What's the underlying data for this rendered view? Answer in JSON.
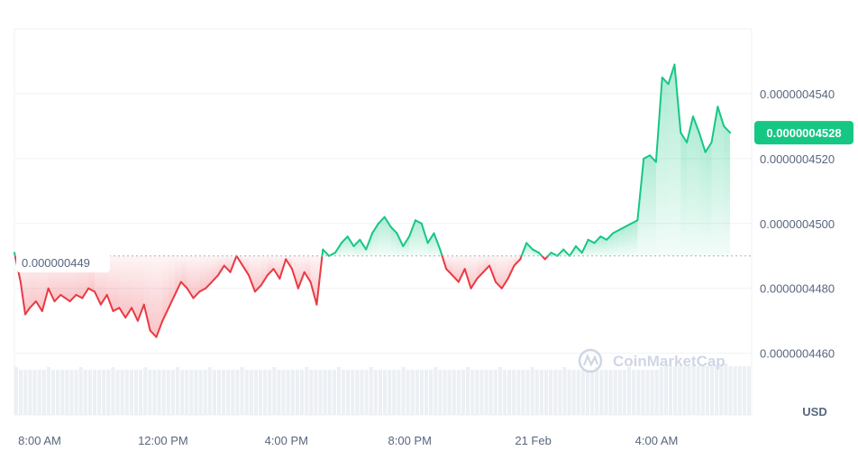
{
  "chart_data": {
    "type": "area",
    "currency": "USD",
    "watermark": "CoinMarketCap",
    "reference_price_label": "0.000000449",
    "reference_price": 4.49e-07,
    "current_price_label": "0.0000004528",
    "current_price": 4.528e-07,
    "ylim": [
      4.441e-07,
      4.56e-07
    ],
    "y_ticks": [
      {
        "label": "0.0000004540",
        "value": 4.54e-07
      },
      {
        "label": "0.0000004520",
        "value": 4.52e-07
      },
      {
        "label": "0.0000004500",
        "value": 4.5e-07
      },
      {
        "label": "0.0000004480",
        "value": 4.48e-07
      },
      {
        "label": "0.0000004460",
        "value": 4.46e-07
      }
    ],
    "x_ticks": [
      {
        "label": "8:00 AM",
        "t": 0
      },
      {
        "label": "12:00 PM",
        "t": 4
      },
      {
        "label": "4:00 PM",
        "t": 8
      },
      {
        "label": "8:00 PM",
        "t": 12
      },
      {
        "label": "21 Feb",
        "t": 16
      },
      {
        "label": "4:00 AM",
        "t": 20
      }
    ],
    "x_unit": "hours after 8:00 AM",
    "xlim": [
      0,
      23.9
    ],
    "colors": {
      "up": "#16c784",
      "down": "#ea3943",
      "current_badge": "#16c784",
      "grid": "#eff2f5",
      "volume": "#eceff3"
    },
    "grid": true,
    "series": [
      {
        "values": [
          [
            0.0,
            4.491e-07
          ],
          [
            0.2,
            4.482e-07
          ],
          [
            0.35,
            4.472e-07
          ],
          [
            0.5,
            4.474e-07
          ],
          [
            0.7,
            4.476e-07
          ],
          [
            0.9,
            4.473e-07
          ],
          [
            1.1,
            4.48e-07
          ],
          [
            1.3,
            4.476e-07
          ],
          [
            1.5,
            4.478e-07
          ],
          [
            1.8,
            4.476e-07
          ],
          [
            2.0,
            4.478e-07
          ],
          [
            2.2,
            4.477e-07
          ],
          [
            2.4,
            4.48e-07
          ],
          [
            2.6,
            4.479e-07
          ],
          [
            2.8,
            4.475e-07
          ],
          [
            3.0,
            4.478e-07
          ],
          [
            3.2,
            4.473e-07
          ],
          [
            3.4,
            4.474e-07
          ],
          [
            3.6,
            4.471e-07
          ],
          [
            3.8,
            4.474e-07
          ],
          [
            4.0,
            4.47e-07
          ],
          [
            4.2,
            4.475e-07
          ],
          [
            4.4,
            4.467e-07
          ],
          [
            4.6,
            4.465e-07
          ],
          [
            4.8,
            4.47e-07
          ],
          [
            5.0,
            4.474e-07
          ],
          [
            5.2,
            4.478e-07
          ],
          [
            5.4,
            4.482e-07
          ],
          [
            5.6,
            4.48e-07
          ],
          [
            5.8,
            4.477e-07
          ],
          [
            6.0,
            4.479e-07
          ],
          [
            6.2,
            4.48e-07
          ],
          [
            6.4,
            4.482e-07
          ],
          [
            6.6,
            4.484e-07
          ],
          [
            6.8,
            4.487e-07
          ],
          [
            7.0,
            4.485e-07
          ],
          [
            7.2,
            4.49e-07
          ],
          [
            7.4,
            4.487e-07
          ],
          [
            7.6,
            4.484e-07
          ],
          [
            7.8,
            4.479e-07
          ],
          [
            8.0,
            4.481e-07
          ],
          [
            8.2,
            4.484e-07
          ],
          [
            8.4,
            4.486e-07
          ],
          [
            8.6,
            4.483e-07
          ],
          [
            8.8,
            4.489e-07
          ],
          [
            9.0,
            4.486e-07
          ],
          [
            9.2,
            4.48e-07
          ],
          [
            9.4,
            4.485e-07
          ],
          [
            9.6,
            4.482e-07
          ],
          [
            9.8,
            4.475e-07
          ],
          [
            10.0,
            4.492e-07
          ],
          [
            10.2,
            4.49e-07
          ],
          [
            10.4,
            4.491e-07
          ],
          [
            10.6,
            4.494e-07
          ],
          [
            10.8,
            4.496e-07
          ],
          [
            11.0,
            4.493e-07
          ],
          [
            11.2,
            4.495e-07
          ],
          [
            11.4,
            4.492e-07
          ],
          [
            11.6,
            4.497e-07
          ],
          [
            11.8,
            4.5e-07
          ],
          [
            12.0,
            4.502e-07
          ],
          [
            12.2,
            4.499e-07
          ],
          [
            12.4,
            4.497e-07
          ],
          [
            12.6,
            4.493e-07
          ],
          [
            12.8,
            4.496e-07
          ],
          [
            13.0,
            4.501e-07
          ],
          [
            13.2,
            4.5e-07
          ],
          [
            13.4,
            4.494e-07
          ],
          [
            13.6,
            4.497e-07
          ],
          [
            13.8,
            4.492e-07
          ],
          [
            14.0,
            4.486e-07
          ],
          [
            14.2,
            4.484e-07
          ],
          [
            14.4,
            4.482e-07
          ],
          [
            14.6,
            4.486e-07
          ],
          [
            14.8,
            4.48e-07
          ],
          [
            15.0,
            4.483e-07
          ],
          [
            15.2,
            4.485e-07
          ],
          [
            15.4,
            4.487e-07
          ],
          [
            15.6,
            4.482e-07
          ],
          [
            15.8,
            4.48e-07
          ],
          [
            16.0,
            4.483e-07
          ],
          [
            16.2,
            4.487e-07
          ],
          [
            16.4,
            4.489e-07
          ],
          [
            16.6,
            4.494e-07
          ],
          [
            16.8,
            4.492e-07
          ],
          [
            17.0,
            4.491e-07
          ],
          [
            17.2,
            4.489e-07
          ],
          [
            17.4,
            4.491e-07
          ],
          [
            17.6,
            4.49e-07
          ],
          [
            17.8,
            4.492e-07
          ],
          [
            18.0,
            4.49e-07
          ],
          [
            18.2,
            4.493e-07
          ],
          [
            18.4,
            4.491e-07
          ],
          [
            18.6,
            4.495e-07
          ],
          [
            18.8,
            4.494e-07
          ],
          [
            19.0,
            4.496e-07
          ],
          [
            19.2,
            4.495e-07
          ],
          [
            19.4,
            4.497e-07
          ],
          [
            19.6,
            4.498e-07
          ],
          [
            19.8,
            4.499e-07
          ],
          [
            20.0,
            4.5e-07
          ],
          [
            20.2,
            4.501e-07
          ],
          [
            20.4,
            4.52e-07
          ],
          [
            20.6,
            4.521e-07
          ],
          [
            20.8,
            4.519e-07
          ],
          [
            21.0,
            4.545e-07
          ],
          [
            21.2,
            4.543e-07
          ],
          [
            21.4,
            4.549e-07
          ],
          [
            21.6,
            4.528e-07
          ],
          [
            21.8,
            4.525e-07
          ],
          [
            22.0,
            4.533e-07
          ],
          [
            22.2,
            4.528e-07
          ],
          [
            22.4,
            4.522e-07
          ],
          [
            22.6,
            4.525e-07
          ],
          [
            22.8,
            4.536e-07
          ],
          [
            23.0,
            4.53e-07
          ],
          [
            23.2,
            4.528e-07
          ]
        ]
      }
    ]
  }
}
